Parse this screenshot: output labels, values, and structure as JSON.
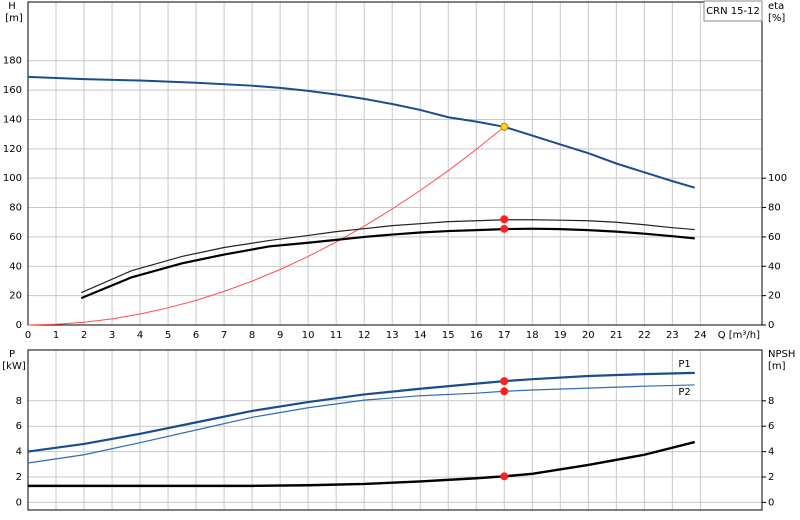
{
  "chart_data": [
    {
      "type": "line",
      "title": "CRN 15-12",
      "y_label": "H",
      "y_unit": "[m]",
      "y2_label": "eta",
      "y2_unit": "[%]",
      "x_label": "Q [m³/h]",
      "xlim": [
        0,
        26.2
      ],
      "xticks": [
        0,
        1,
        2,
        3,
        4,
        5,
        6,
        7,
        8,
        9,
        10,
        11,
        12,
        13,
        14,
        15,
        16,
        17,
        18,
        19,
        20,
        21,
        22,
        23,
        24
      ],
      "ylim": [
        0,
        220
      ],
      "yticks": [
        0,
        20,
        40,
        60,
        80,
        100,
        120,
        140,
        160,
        180
      ],
      "y2lim": [
        0,
        220
      ],
      "y2ticks": [
        0,
        20,
        40,
        60,
        80,
        100
      ],
      "grid": true,
      "series": [
        {
          "color": "#1a4d8f",
          "x": [
            0,
            2,
            4,
            6,
            8,
            9,
            10,
            11,
            12,
            13,
            14,
            15,
            16,
            17,
            18,
            19,
            20,
            21,
            22,
            23,
            23.8
          ],
          "values": [
            169,
            167.5,
            166.5,
            165,
            163,
            161.5,
            159.5,
            157,
            154,
            150.5,
            146.5,
            141.5,
            138.5,
            135,
            129,
            123,
            117,
            110,
            104,
            98,
            93.5
          ]
        },
        {
          "color": "#ff4d4d",
          "x": [
            0,
            1,
            2,
            3,
            4,
            5,
            6,
            7,
            8,
            9,
            10,
            11,
            12,
            13,
            14,
            15,
            16,
            17
          ],
          "values": [
            0,
            0.5,
            1.9,
            4.2,
            7.5,
            11.7,
            16.8,
            22.9,
            29.9,
            37.8,
            46.7,
            56.5,
            67.3,
            79,
            91.6,
            105.1,
            119.6,
            135
          ]
        },
        {
          "color": "#222222",
          "axis": "y2",
          "x": [
            1.9,
            3.7,
            5.5,
            7,
            8.6,
            10,
            11,
            12,
            13,
            14,
            15,
            16,
            17,
            18,
            19,
            20,
            21,
            22,
            23,
            23.8
          ],
          "values": [
            22,
            37,
            46.7,
            52.8,
            57.5,
            61,
            63.6,
            65.6,
            67.7,
            69,
            70.4,
            71,
            71.7,
            71.7,
            71.4,
            71,
            70,
            68.3,
            66.3,
            65
          ]
        },
        {
          "color": "#000000",
          "axis": "y2",
          "x": [
            1.9,
            3.7,
            5.5,
            7,
            8.6,
            10,
            11,
            12,
            13,
            14,
            15,
            16,
            17,
            18,
            19,
            20,
            21,
            22,
            23,
            23.8
          ],
          "values": [
            18.3,
            32.5,
            42,
            48,
            53.5,
            56,
            58,
            60,
            61.6,
            63,
            64,
            64.6,
            65.3,
            65.6,
            65.3,
            64.6,
            63.6,
            62.2,
            60.5,
            59
          ]
        }
      ],
      "markers": [
        {
          "x": 17,
          "value": 135,
          "color": "#ffd21f"
        },
        {
          "x": 17,
          "value": 72,
          "color": "#ff2020",
          "axis": "y2"
        },
        {
          "x": 17,
          "value": 65.5,
          "color": "#ff2020",
          "axis": "y2"
        }
      ]
    },
    {
      "type": "line",
      "y_label": "P",
      "y_unit": "[kW]",
      "y2_label": "NPSH",
      "y2_unit": "[m]",
      "xlim": [
        0,
        26.2
      ],
      "xticks": [
        0,
        1,
        2,
        3,
        4,
        5,
        6,
        7,
        8,
        9,
        10,
        11,
        12,
        13,
        14,
        15,
        16,
        17,
        18,
        19,
        20,
        21,
        22,
        23,
        24
      ],
      "ylim": [
        -0.6,
        12
      ],
      "yticks": [
        0,
        2,
        4,
        6,
        8
      ],
      "y2lim": [
        -0.6,
        12
      ],
      "y2ticks": [
        0,
        2,
        4,
        6,
        8
      ],
      "grid": true,
      "series": [
        {
          "name": "P1",
          "color": "#1a4d8f",
          "x": [
            0,
            2,
            4,
            6,
            8,
            10,
            12,
            14,
            16,
            17,
            18,
            20,
            22,
            23.8
          ],
          "values": [
            4.0,
            4.6,
            5.4,
            6.3,
            7.2,
            7.9,
            8.5,
            8.95,
            9.35,
            9.55,
            9.7,
            9.95,
            10.1,
            10.2
          ]
        },
        {
          "name": "P2",
          "color": "#2f6db0",
          "x": [
            0,
            2,
            4,
            6,
            8,
            10,
            12,
            14,
            16,
            17,
            18,
            20,
            22,
            23.8
          ],
          "values": [
            3.1,
            3.75,
            4.7,
            5.7,
            6.7,
            7.45,
            8.05,
            8.4,
            8.6,
            8.75,
            8.85,
            9.0,
            9.15,
            9.25
          ]
        },
        {
          "color": "#000000",
          "axis": "y2",
          "x": [
            0,
            2,
            4,
            6,
            8,
            10,
            12,
            14,
            16,
            17,
            18,
            20,
            22,
            23.8
          ],
          "values": [
            1.3,
            1.3,
            1.3,
            1.3,
            1.3,
            1.35,
            1.45,
            1.65,
            1.9,
            2.05,
            2.25,
            2.95,
            3.75,
            4.75
          ]
        }
      ],
      "markers": [
        {
          "x": 17,
          "value": 9.55,
          "color": "#ff2020"
        },
        {
          "x": 17,
          "value": 8.75,
          "color": "#ff2020"
        },
        {
          "x": 17,
          "value": 2.05,
          "color": "#ff2020",
          "axis": "y2"
        }
      ]
    }
  ]
}
